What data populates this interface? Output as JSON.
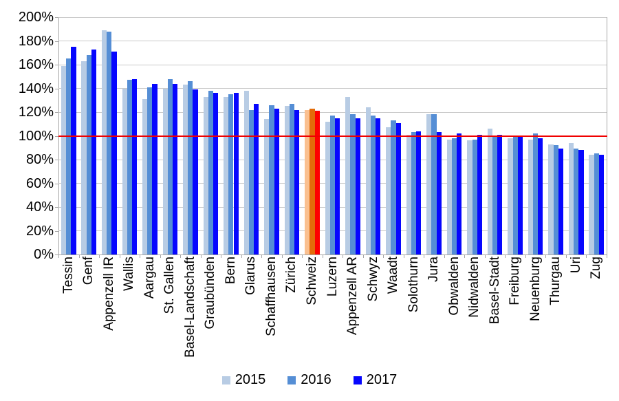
{
  "chart_data": {
    "type": "bar",
    "title": "",
    "xlabel": "",
    "ylabel": "",
    "categories": [
      "Tessin",
      "Genf",
      "Appenzell IR",
      "Wallis",
      "Aargau",
      "St. Gallen",
      "Basel-Landschaft",
      "Graubünden",
      "Bern",
      "Glarus",
      "Schaffhausen",
      "Zürich",
      "Schweiz",
      "Luzern",
      "Appenzell AR",
      "Schwyz",
      "Waadt",
      "Solothurn",
      "Jura",
      "Obwalden",
      "Nidwalden",
      "Basel-Stadt",
      "Freiburg",
      "Neuenburg",
      "Thurgau",
      "Uri",
      "Zug"
    ],
    "series": [
      {
        "name": "2015",
        "color": "#B8CCE4",
        "values": [
          159,
          163,
          189,
          140,
          131,
          140,
          143,
          133,
          133,
          138,
          114,
          125,
          122,
          112,
          133,
          124,
          107,
          101,
          118,
          97,
          96,
          106,
          98,
          97,
          93,
          94,
          84
        ]
      },
      {
        "name": "2016",
        "color": "#558ED5",
        "values": [
          165,
          168,
          188,
          147,
          141,
          148,
          146,
          138,
          135,
          122,
          126,
          127,
          123,
          117,
          118,
          117,
          113,
          103,
          118,
          98,
          97,
          99,
          99,
          102,
          92,
          89,
          85
        ]
      },
      {
        "name": "2017",
        "color": "#0606FE",
        "values": [
          175,
          173,
          171,
          148,
          144,
          144,
          139,
          136,
          136,
          127,
          123,
          122,
          121,
          115,
          115,
          115,
          111,
          104,
          103,
          102,
          101,
          101,
          99,
          98,
          89,
          88,
          84
        ]
      }
    ],
    "highlight": {
      "category": "Schweiz",
      "colors": [
        "#FAC090",
        "#E36C0A",
        "#FE0000"
      ]
    },
    "reference_line": {
      "value": 100,
      "color": "#F00000"
    },
    "ylim": [
      0,
      200
    ],
    "y_tick_step": 20,
    "y_tick_labels": [
      "0%",
      "20%",
      "40%",
      "60%",
      "80%",
      "100%",
      "120%",
      "140%",
      "160%",
      "180%",
      "200%"
    ],
    "grid": true,
    "legend_position": "bottom"
  }
}
